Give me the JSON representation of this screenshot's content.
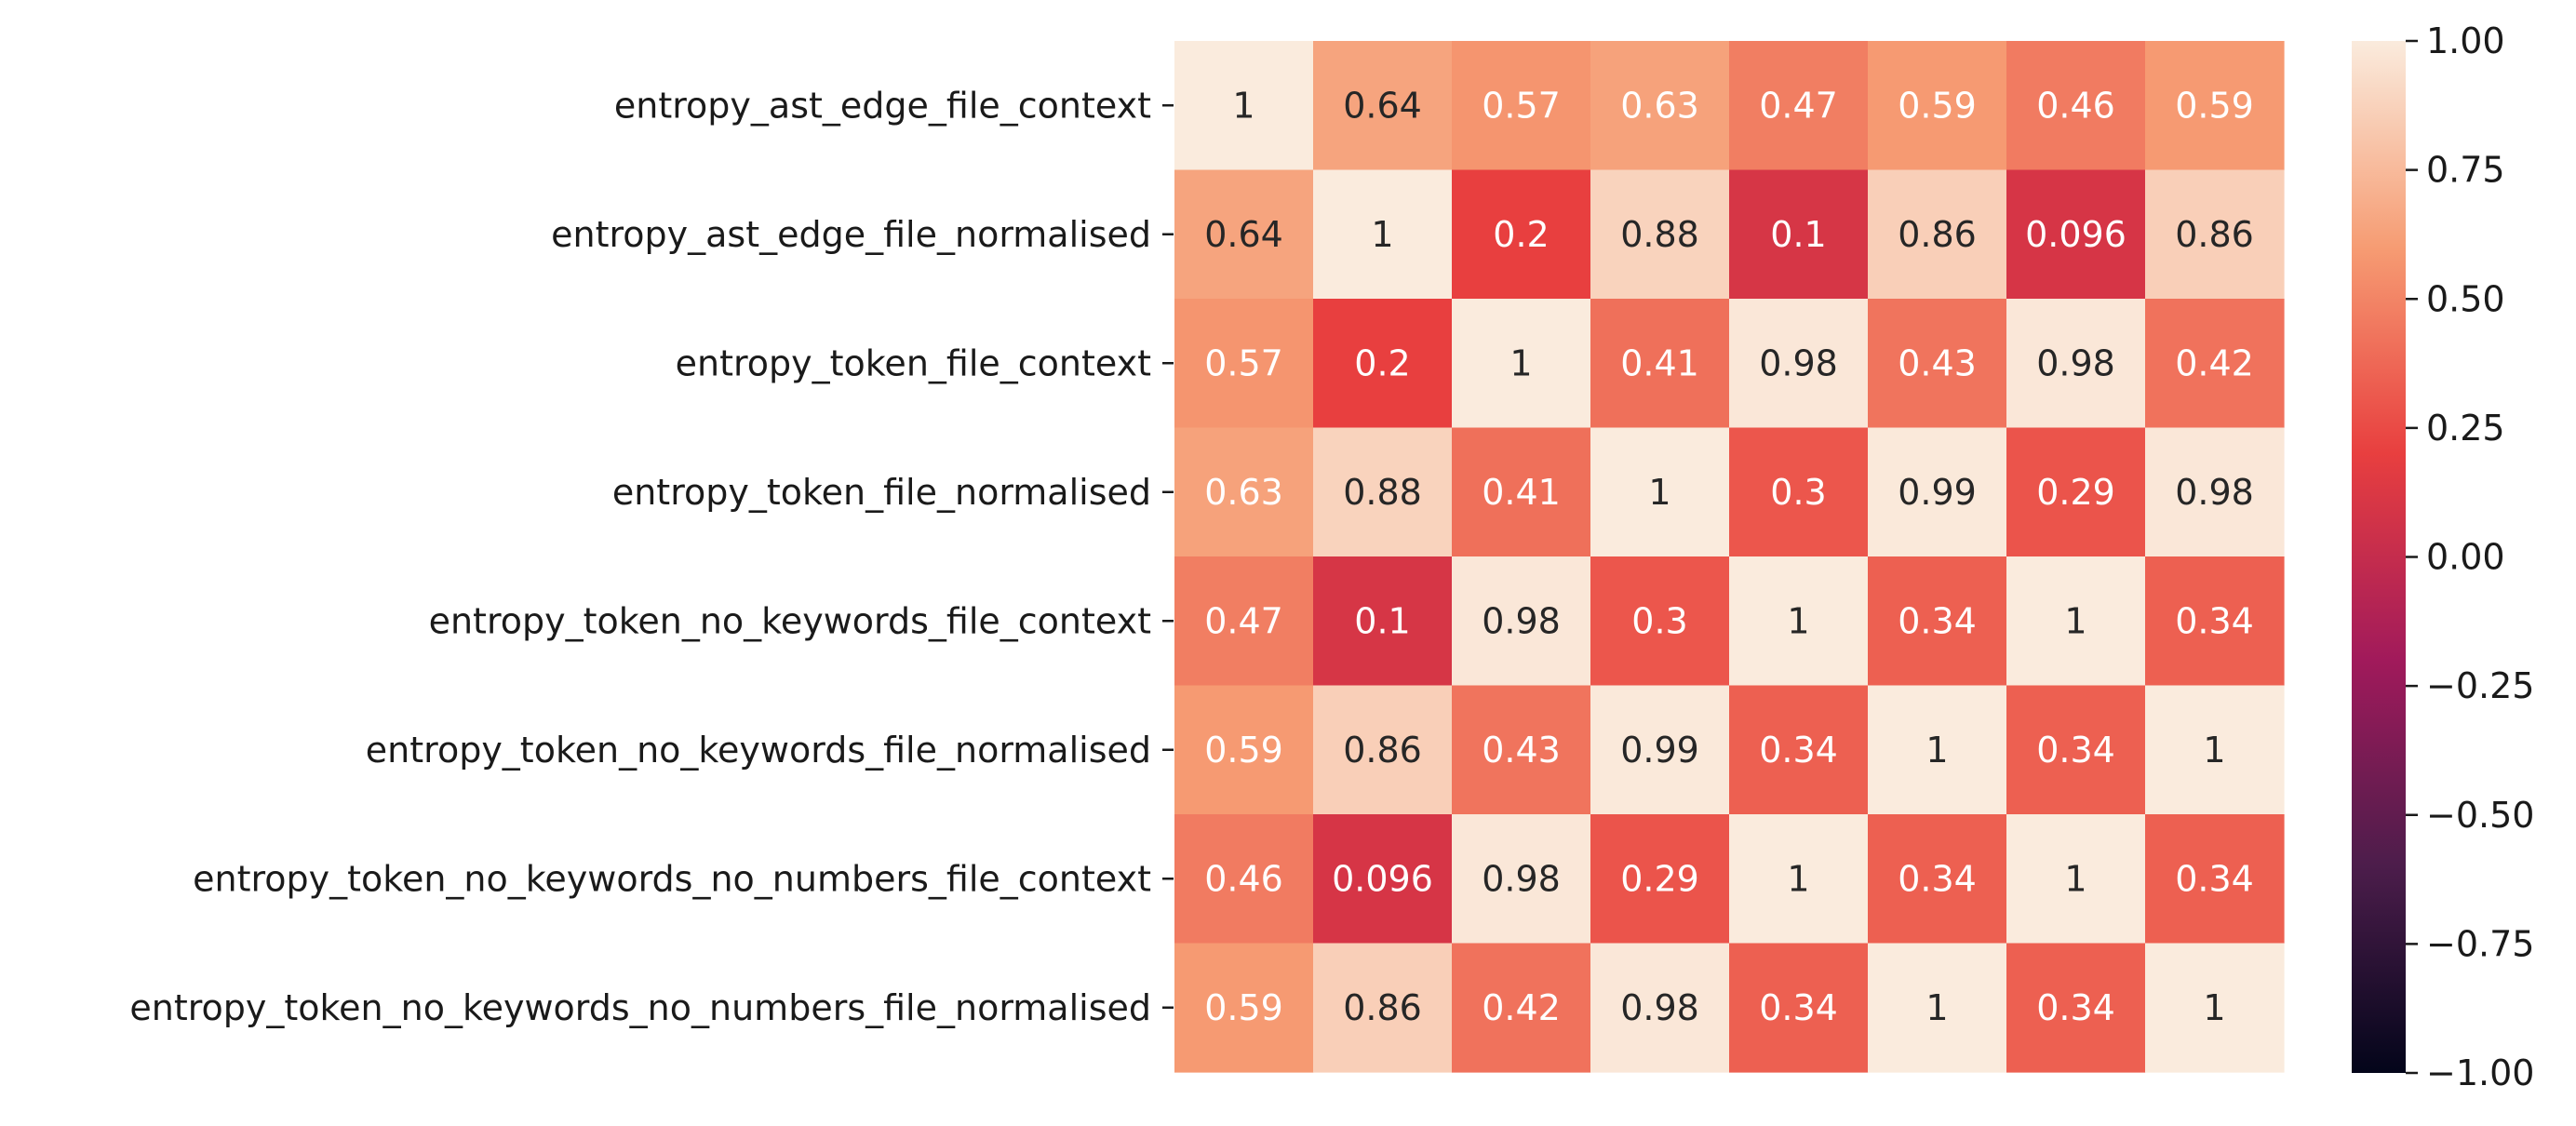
{
  "chart_data": {
    "type": "heatmap",
    "title": "",
    "xlabel": "",
    "ylabel": "",
    "row_labels": [
      "entropy_ast_edge_file_context",
      "entropy_ast_edge_file_normalised",
      "entropy_token_file_context",
      "entropy_token_file_normalised",
      "entropy_token_no_keywords_file_context",
      "entropy_token_no_keywords_file_normalised",
      "entropy_token_no_keywords_no_numbers_file_context",
      "entropy_token_no_keywords_no_numbers_file_normalised"
    ],
    "column_labels_shown": false,
    "values": [
      [
        1,
        0.64,
        0.57,
        0.63,
        0.47,
        0.59,
        0.46,
        0.59
      ],
      [
        0.64,
        1,
        0.2,
        0.88,
        0.1,
        0.86,
        0.096,
        0.86
      ],
      [
        0.57,
        0.2,
        1,
        0.41,
        0.98,
        0.43,
        0.98,
        0.42
      ],
      [
        0.63,
        0.88,
        0.41,
        1,
        0.3,
        0.99,
        0.29,
        0.98
      ],
      [
        0.47,
        0.1,
        0.98,
        0.3,
        1,
        0.34,
        1,
        0.34
      ],
      [
        0.59,
        0.86,
        0.43,
        0.99,
        0.34,
        1,
        0.34,
        1
      ],
      [
        0.46,
        0.096,
        0.98,
        0.29,
        1,
        0.34,
        1,
        0.34
      ],
      [
        0.59,
        0.86,
        0.42,
        0.98,
        0.34,
        1,
        0.34,
        1
      ]
    ],
    "annotations": [
      [
        "1",
        "0.64",
        "0.57",
        "0.63",
        "0.47",
        "0.59",
        "0.46",
        "0.59"
      ],
      [
        "0.64",
        "1",
        "0.2",
        "0.88",
        "0.1",
        "0.86",
        "0.096",
        "0.86"
      ],
      [
        "0.57",
        "0.2",
        "1",
        "0.41",
        "0.98",
        "0.43",
        "0.98",
        "0.42"
      ],
      [
        "0.63",
        "0.88",
        "0.41",
        "1",
        "0.3",
        "0.99",
        "0.29",
        "0.98"
      ],
      [
        "0.47",
        "0.1",
        "0.98",
        "0.3",
        "1",
        "0.34",
        "1",
        "0.34"
      ],
      [
        "0.59",
        "0.86",
        "0.43",
        "0.99",
        "0.34",
        "1",
        "0.34",
        "1"
      ],
      [
        "0.46",
        "0.096",
        "0.98",
        "0.29",
        "1",
        "0.34",
        "1",
        "0.34"
      ],
      [
        "0.59",
        "0.86",
        "0.42",
        "0.98",
        "0.34",
        "1",
        "0.34",
        "1"
      ]
    ],
    "colorbar": {
      "range": [
        -1.0,
        1.0
      ],
      "ticks": [
        1.0,
        0.75,
        0.5,
        0.25,
        0.0,
        -0.25,
        -0.5,
        -0.75,
        -1.0
      ],
      "tick_labels": [
        "1.00",
        "0.75",
        "0.50",
        "0.25",
        "0.00",
        "−0.25",
        "−0.50",
        "−0.75",
        "−1.00"
      ],
      "colormap": "rocket",
      "color_stops": [
        "#03051a",
        "#4c1d4b",
        "#a11a5b",
        "#e83f3f",
        "#f69c73",
        "#faebdd"
      ]
    },
    "grid": false,
    "legend": "colorbar-right"
  }
}
